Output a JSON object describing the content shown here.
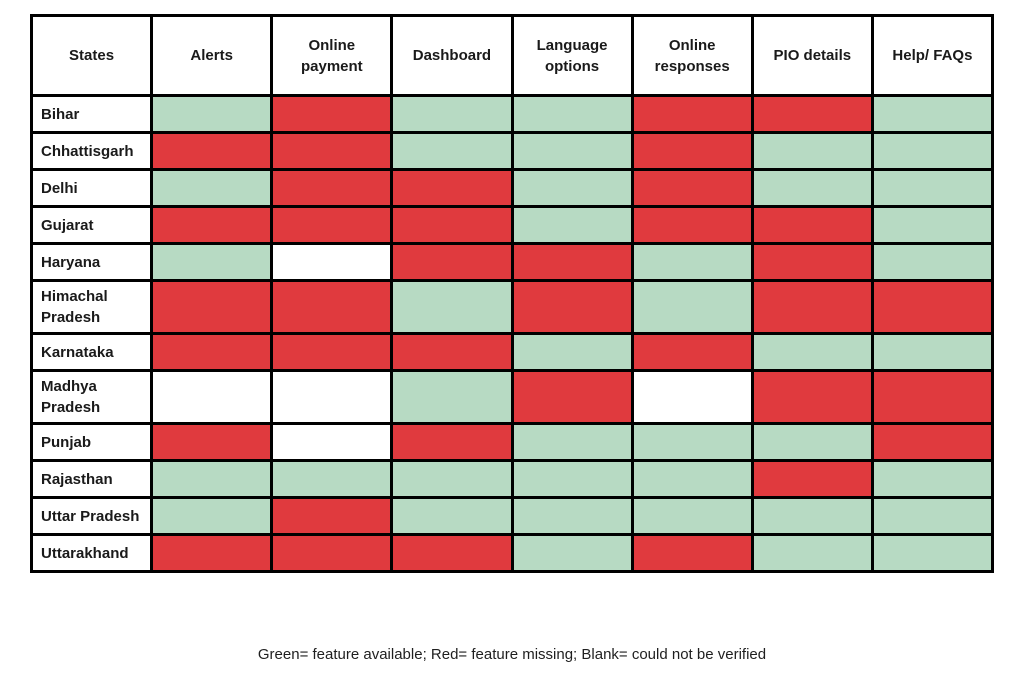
{
  "legend": {
    "caption": "Green= feature available; Red= feature missing; Blank= could not be verified"
  },
  "colors": {
    "green": "#b7dac3",
    "red": "#e03a3e",
    "blank": "#ffffff",
    "border": "#000000"
  },
  "chart_data": {
    "type": "heatmap",
    "title": "",
    "columns": [
      "States",
      "Alerts",
      "Online payment",
      "Dashboard",
      "Language options",
      "Online responses",
      "PIO details",
      "Help/ FAQs"
    ],
    "value_meaning": {
      "green": "feature available",
      "red": "feature missing",
      "blank": "could not be verified"
    },
    "rows": [
      {
        "state": "Bihar",
        "values": [
          "green",
          "red",
          "green",
          "green",
          "red",
          "red",
          "green"
        ]
      },
      {
        "state": "Chhattisgarh",
        "values": [
          "red",
          "red",
          "green",
          "green",
          "red",
          "green",
          "green"
        ]
      },
      {
        "state": "Delhi",
        "values": [
          "green",
          "red",
          "red",
          "green",
          "red",
          "green",
          "green"
        ]
      },
      {
        "state": "Gujarat",
        "values": [
          "red",
          "red",
          "red",
          "green",
          "red",
          "red",
          "green"
        ]
      },
      {
        "state": "Haryana",
        "values": [
          "green",
          "blank",
          "red",
          "red",
          "green",
          "red",
          "green"
        ]
      },
      {
        "state": "Himachal Pradesh",
        "values": [
          "red",
          "red",
          "green",
          "red",
          "green",
          "red",
          "red"
        ]
      },
      {
        "state": "Karnataka",
        "values": [
          "red",
          "red",
          "red",
          "green",
          "red",
          "green",
          "green"
        ]
      },
      {
        "state": "Madhya Pradesh",
        "values": [
          "blank",
          "blank",
          "green",
          "red",
          "blank",
          "red",
          "red"
        ]
      },
      {
        "state": "Punjab",
        "values": [
          "red",
          "blank",
          "red",
          "green",
          "green",
          "green",
          "red"
        ]
      },
      {
        "state": "Rajasthan",
        "values": [
          "green",
          "green",
          "green",
          "green",
          "green",
          "red",
          "green"
        ]
      },
      {
        "state": "Uttar Pradesh",
        "values": [
          "green",
          "red",
          "green",
          "green",
          "green",
          "green",
          "green"
        ]
      },
      {
        "state": "Uttarakhand",
        "values": [
          "red",
          "red",
          "red",
          "green",
          "red",
          "green",
          "green"
        ]
      }
    ]
  }
}
